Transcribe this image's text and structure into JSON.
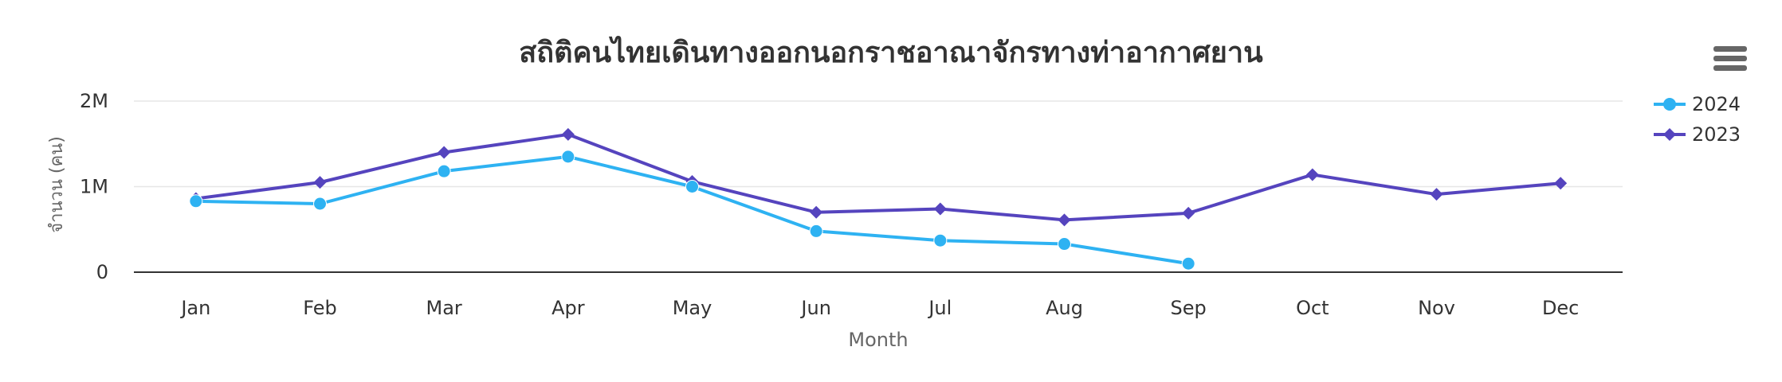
{
  "chart_data": {
    "type": "line",
    "title": "สถิติคนไทยเดินทางออกนอกราชอาณาจักรทางท่าอากาศยาน",
    "xlabel": "Month",
    "ylabel": "จำนวน (คน)",
    "categories": [
      "Jan",
      "Feb",
      "Mar",
      "Apr",
      "May",
      "Jun",
      "Jul",
      "Aug",
      "Sep",
      "Oct",
      "Nov",
      "Dec"
    ],
    "y_ticks": [
      "0",
      "1M",
      "2M"
    ],
    "ylim": [
      0,
      2000000
    ],
    "grid": true,
    "legend_position": "right",
    "series": [
      {
        "name": "2024",
        "color": "#2eb2f2",
        "marker": "circle",
        "values": [
          830000,
          800000,
          1180000,
          1350000,
          1000000,
          480000,
          370000,
          330000,
          100000,
          null,
          null,
          null
        ]
      },
      {
        "name": "2023",
        "color": "#5544be",
        "marker": "diamond",
        "values": [
          860000,
          1050000,
          1400000,
          1610000,
          1060000,
          700000,
          740000,
          610000,
          690000,
          1140000,
          910000,
          1040000
        ]
      }
    ]
  },
  "toolbar": {
    "menu_icon": "hamburger-menu-icon"
  }
}
